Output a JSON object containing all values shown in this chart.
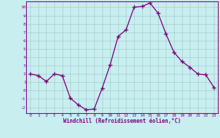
{
  "x": [
    0,
    1,
    2,
    3,
    4,
    5,
    6,
    7,
    8,
    9,
    10,
    11,
    12,
    13,
    14,
    15,
    16,
    17,
    18,
    19,
    20,
    21,
    22,
    23
  ],
  "y": [
    2,
    1.8,
    1.1,
    2.0,
    1.8,
    -0.9,
    -1.7,
    -2.3,
    -2.2,
    0.3,
    3.1,
    6.5,
    7.3,
    10.0,
    10.1,
    10.5,
    9.3,
    6.8,
    4.6,
    3.5,
    2.8,
    2.0,
    1.9,
    0.4
  ],
  "line_color": "#800080",
  "marker": "+",
  "markersize": 4,
  "linewidth": 1.0,
  "bg_color": "#c8eef0",
  "grid_color": "#a0cccc",
  "xlabel": "Windchill (Refroidissement éolien,°C)",
  "xlabel_color": "#800080",
  "tick_color": "#800080",
  "xlim": [
    -0.5,
    23.5
  ],
  "ylim": [
    -2.7,
    10.7
  ],
  "yticks": [
    -2,
    -1,
    0,
    1,
    2,
    3,
    4,
    5,
    6,
    7,
    8,
    9,
    10
  ],
  "xticks": [
    0,
    1,
    2,
    3,
    4,
    5,
    6,
    7,
    8,
    9,
    10,
    11,
    12,
    13,
    14,
    15,
    16,
    17,
    18,
    19,
    20,
    21,
    22,
    23
  ],
  "spine_color": "#800080",
  "markeredgewidth": 1.0
}
